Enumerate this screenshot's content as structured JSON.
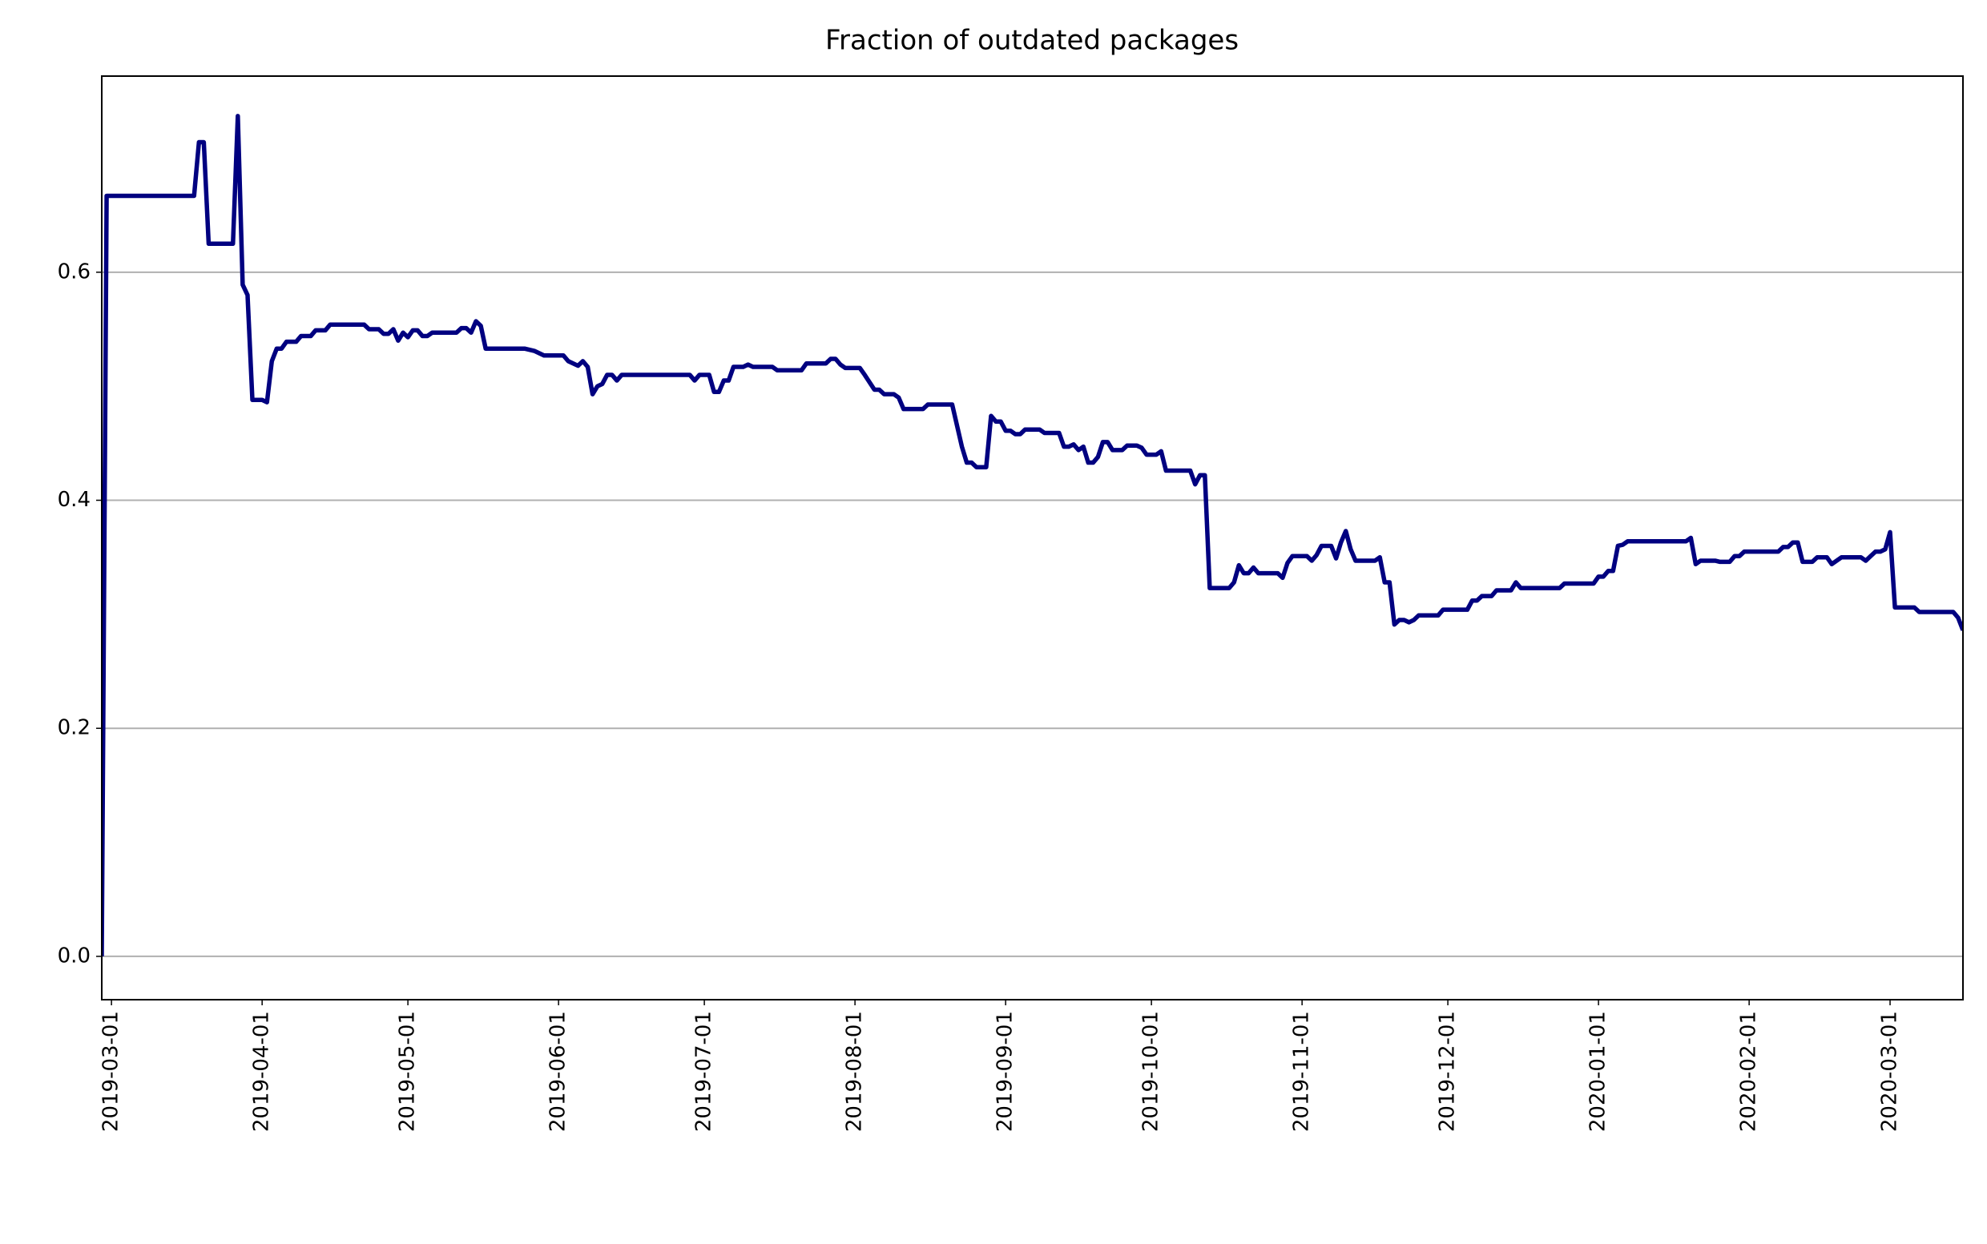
{
  "chart_data": {
    "type": "line",
    "title": "Fraction of outdated packages",
    "color": "#000080",
    "grid": "y",
    "xlim": [
      "2019-02-27",
      "2020-03-16"
    ],
    "xticks": [
      "2019-03-01",
      "2019-04-01",
      "2019-05-01",
      "2019-06-01",
      "2019-07-01",
      "2019-08-01",
      "2019-09-01",
      "2019-10-01",
      "2019-11-01",
      "2019-12-01",
      "2020-01-01",
      "2020-02-01",
      "2020-03-01"
    ],
    "ylim": [
      -0.038,
      0.772
    ],
    "yticks": [
      {
        "value": 0,
        "label": "0.0"
      },
      0.2,
      0.4,
      0.6
    ],
    "x": [
      "2019-02-27",
      "2019-02-28",
      "2019-03-18",
      "2019-03-19",
      "2019-03-20",
      "2019-03-21",
      "2019-03-26",
      "2019-03-27",
      "2019-03-28",
      "2019-03-29",
      "2019-03-30",
      "2019-04-01",
      "2019-04-02",
      "2019-04-03",
      "2019-04-04",
      "2019-04-05",
      "2019-04-06",
      "2019-04-08",
      "2019-04-09",
      "2019-04-11",
      "2019-04-12",
      "2019-04-14",
      "2019-04-15",
      "2019-04-22",
      "2019-04-23",
      "2019-04-25",
      "2019-04-26",
      "2019-04-27",
      "2019-04-28",
      "2019-04-29",
      "2019-04-30",
      "2019-05-01",
      "2019-05-02",
      "2019-05-03",
      "2019-05-04",
      "2019-05-05",
      "2019-05-06",
      "2019-05-11",
      "2019-05-12",
      "2019-05-13",
      "2019-05-14",
      "2019-05-15",
      "2019-05-16",
      "2019-05-17",
      "2019-05-25",
      "2019-05-27",
      "2019-05-29",
      "2019-06-02",
      "2019-06-03",
      "2019-06-05",
      "2019-06-06",
      "2019-06-07",
      "2019-06-08",
      "2019-06-09",
      "2019-06-10",
      "2019-06-11",
      "2019-06-12",
      "2019-06-13",
      "2019-06-14",
      "2019-06-28",
      "2019-06-29",
      "2019-06-30",
      "2019-07-02",
      "2019-07-03",
      "2019-07-04",
      "2019-07-05",
      "2019-07-06",
      "2019-07-07",
      "2019-07-09",
      "2019-07-10",
      "2019-07-11",
      "2019-07-15",
      "2019-07-16",
      "2019-07-21",
      "2019-07-22",
      "2019-07-26",
      "2019-07-27",
      "2019-07-28",
      "2019-07-29",
      "2019-07-30",
      "2019-08-02",
      "2019-08-03",
      "2019-08-05",
      "2019-08-06",
      "2019-08-07",
      "2019-08-09",
      "2019-08-10",
      "2019-08-11",
      "2019-08-15",
      "2019-08-16",
      "2019-08-21",
      "2019-08-23",
      "2019-08-24",
      "2019-08-25",
      "2019-08-26",
      "2019-08-28",
      "2019-08-29",
      "2019-08-30",
      "2019-08-31",
      "2019-09-01",
      "2019-09-02",
      "2019-09-03",
      "2019-09-04",
      "2019-09-05",
      "2019-09-08",
      "2019-09-09",
      "2019-09-12",
      "2019-09-13",
      "2019-09-14",
      "2019-09-15",
      "2019-09-16",
      "2019-09-17",
      "2019-09-18",
      "2019-09-19",
      "2019-09-20",
      "2019-09-21",
      "2019-09-22",
      "2019-09-23",
      "2019-09-25",
      "2019-09-26",
      "2019-09-28",
      "2019-09-29",
      "2019-09-30",
      "2019-10-02",
      "2019-10-03",
      "2019-10-04",
      "2019-10-09",
      "2019-10-10",
      "2019-10-11",
      "2019-10-12",
      "2019-10-13",
      "2019-10-17",
      "2019-10-18",
      "2019-10-19",
      "2019-10-20",
      "2019-10-21",
      "2019-10-22",
      "2019-10-23",
      "2019-10-27",
      "2019-10-28",
      "2019-10-29",
      "2019-10-30",
      "2019-11-02",
      "2019-11-03",
      "2019-11-04",
      "2019-11-05",
      "2019-11-07",
      "2019-11-08",
      "2019-11-09",
      "2019-11-10",
      "2019-11-11",
      "2019-11-12",
      "2019-11-16",
      "2019-11-17",
      "2019-11-18",
      "2019-11-19",
      "2019-11-20",
      "2019-11-21",
      "2019-11-22",
      "2019-11-23",
      "2019-11-24",
      "2019-11-25",
      "2019-11-29",
      "2019-11-30",
      "2019-12-05",
      "2019-12-06",
      "2019-12-07",
      "2019-12-08",
      "2019-12-10",
      "2019-12-11",
      "2019-12-14",
      "2019-12-15",
      "2019-12-16",
      "2019-12-24",
      "2019-12-25",
      "2019-12-31",
      "2020-01-01",
      "2020-01-02",
      "2020-01-03",
      "2020-01-04",
      "2020-01-05",
      "2020-01-06",
      "2020-01-07",
      "2020-01-19",
      "2020-01-20",
      "2020-01-21",
      "2020-01-22",
      "2020-01-25",
      "2020-01-26",
      "2020-01-28",
      "2020-01-29",
      "2020-01-30",
      "2020-01-31",
      "2020-02-07",
      "2020-02-08",
      "2020-02-09",
      "2020-02-10",
      "2020-02-11",
      "2020-02-12",
      "2020-02-14",
      "2020-02-15",
      "2020-02-17",
      "2020-02-18",
      "2020-02-19",
      "2020-02-20",
      "2020-02-24",
      "2020-02-25",
      "2020-02-26",
      "2020-02-27",
      "2020-02-28",
      "2020-02-29",
      "2020-03-01",
      "2020-03-02",
      "2020-03-06",
      "2020-03-07",
      "2020-03-14",
      "2020-03-15",
      "2020-03-16"
    ],
    "values": [
      0.0,
      0.667,
      0.667,
      0.714,
      0.714,
      0.625,
      0.625,
      0.737,
      0.589,
      0.58,
      0.488,
      0.488,
      0.486,
      0.522,
      0.533,
      0.533,
      0.539,
      0.539,
      0.544,
      0.544,
      0.549,
      0.549,
      0.554,
      0.554,
      0.55,
      0.55,
      0.546,
      0.546,
      0.55,
      0.54,
      0.547,
      0.543,
      0.549,
      0.549,
      0.544,
      0.544,
      0.547,
      0.547,
      0.551,
      0.551,
      0.547,
      0.557,
      0.553,
      0.533,
      0.533,
      0.531,
      0.527,
      0.527,
      0.522,
      0.518,
      0.522,
      0.517,
      0.493,
      0.5,
      0.502,
      0.51,
      0.51,
      0.505,
      0.51,
      0.51,
      0.505,
      0.51,
      0.51,
      0.495,
      0.495,
      0.505,
      0.505,
      0.517,
      0.517,
      0.519,
      0.517,
      0.517,
      0.514,
      0.514,
      0.52,
      0.52,
      0.524,
      0.524,
      0.519,
      0.516,
      0.516,
      0.51,
      0.497,
      0.497,
      0.493,
      0.493,
      0.49,
      0.48,
      0.48,
      0.484,
      0.484,
      0.447,
      0.433,
      0.433,
      0.429,
      0.429,
      0.474,
      0.469,
      0.469,
      0.461,
      0.461,
      0.458,
      0.458,
      0.462,
      0.462,
      0.459,
      0.459,
      0.447,
      0.447,
      0.449,
      0.444,
      0.447,
      0.433,
      0.433,
      0.438,
      0.451,
      0.451,
      0.444,
      0.444,
      0.448,
      0.448,
      0.446,
      0.44,
      0.44,
      0.443,
      0.426,
      0.426,
      0.414,
      0.422,
      0.422,
      0.323,
      0.323,
      0.328,
      0.343,
      0.336,
      0.336,
      0.341,
      0.336,
      0.336,
      0.332,
      0.345,
      0.351,
      0.351,
      0.347,
      0.352,
      0.36,
      0.36,
      0.349,
      0.363,
      0.373,
      0.357,
      0.347,
      0.347,
      0.35,
      0.328,
      0.328,
      0.291,
      0.295,
      0.295,
      0.293,
      0.295,
      0.299,
      0.299,
      0.304,
      0.304,
      0.312,
      0.312,
      0.316,
      0.316,
      0.321,
      0.321,
      0.328,
      0.323,
      0.323,
      0.327,
      0.327,
      0.333,
      0.333,
      0.338,
      0.338,
      0.36,
      0.361,
      0.364,
      0.364,
      0.367,
      0.344,
      0.347,
      0.347,
      0.346,
      0.346,
      0.351,
      0.351,
      0.355,
      0.355,
      0.359,
      0.359,
      0.363,
      0.363,
      0.346,
      0.346,
      0.35,
      0.35,
      0.344,
      0.347,
      0.35,
      0.35,
      0.347,
      0.351,
      0.355,
      0.355,
      0.357,
      0.372,
      0.306,
      0.306,
      0.302,
      0.302,
      0.297,
      0.286
    ]
  }
}
